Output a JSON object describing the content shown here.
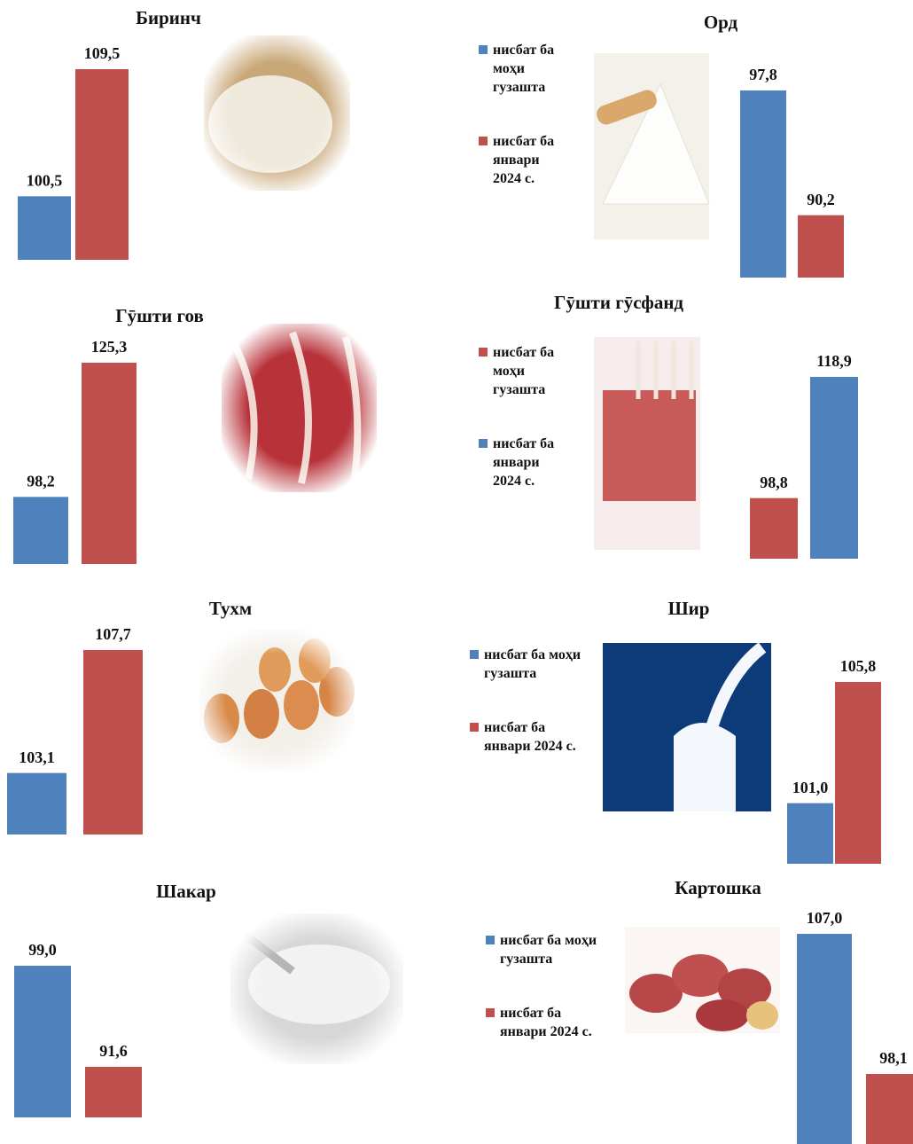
{
  "chart_data": [
    {
      "type": "bar",
      "title": "Биринч",
      "categories": [
        null,
        null
      ],
      "values": [
        100.5,
        109.5
      ],
      "value_labels": [
        "100,5",
        "109,5"
      ],
      "colors": [
        "#4f81bd",
        "#c0504d"
      ]
    },
    {
      "type": "bar",
      "title": "Орд",
      "series": [
        {
          "name": "нисбат ба моҳи гузашта",
          "color": "#4f81bd",
          "values": [
            97.8
          ],
          "value_labels": [
            "97,8"
          ]
        },
        {
          "name": "нисбат ба январи 2024 с.",
          "color": "#c0504d",
          "values": [
            90.2
          ],
          "value_labels": [
            "90,2"
          ]
        }
      ]
    },
    {
      "type": "bar",
      "title": "Гӯшти гов",
      "categories": [
        null,
        null
      ],
      "values": [
        98.2,
        125.3
      ],
      "value_labels": [
        "98,2",
        "125,3"
      ],
      "colors": [
        "#4f81bd",
        "#c0504d"
      ]
    },
    {
      "type": "bar",
      "title": "Гӯшти гӯсфанд",
      "series": [
        {
          "name": "нисбат ба моҳи гузашта",
          "color": "#c0504d",
          "values": [
            98.8
          ],
          "value_labels": [
            "98,8"
          ]
        },
        {
          "name": "нисбат ба январи 2024 с.",
          "color": "#4f81bd",
          "values": [
            118.9
          ],
          "value_labels": [
            "118,9"
          ]
        }
      ]
    },
    {
      "type": "bar",
      "title": "Тухм",
      "categories": [
        null,
        null
      ],
      "values": [
        103.1,
        107.7
      ],
      "value_labels": [
        "103,1",
        "107,7"
      ],
      "colors": [
        "#4f81bd",
        "#c0504d"
      ]
    },
    {
      "type": "bar",
      "title": "Шир",
      "series": [
        {
          "name": "нисбат ба моҳи гузашта",
          "color": "#4f81bd",
          "values": [
            101.0
          ],
          "value_labels": [
            "101,0"
          ]
        },
        {
          "name": "нисбат ба январи 2024 с.",
          "color": "#c0504d",
          "values": [
            105.8
          ],
          "value_labels": [
            "105,8"
          ]
        }
      ]
    },
    {
      "type": "bar",
      "title": "Шакар",
      "categories": [
        null,
        null
      ],
      "values": [
        99.0,
        91.6
      ],
      "value_labels": [
        "99,0",
        "91,6"
      ],
      "colors": [
        "#4f81bd",
        "#c0504d"
      ]
    },
    {
      "type": "bar",
      "title": "Картошка",
      "series": [
        {
          "name": "нисбат ба моҳи гузашта",
          "color": "#4f81bd",
          "values": [
            107.0
          ],
          "value_labels": [
            "107,0"
          ]
        },
        {
          "name": "нисбат ба январи 2024 с.",
          "color": "#c0504d",
          "values": [
            98.1
          ],
          "value_labels": [
            "98,1"
          ]
        }
      ]
    }
  ]
}
